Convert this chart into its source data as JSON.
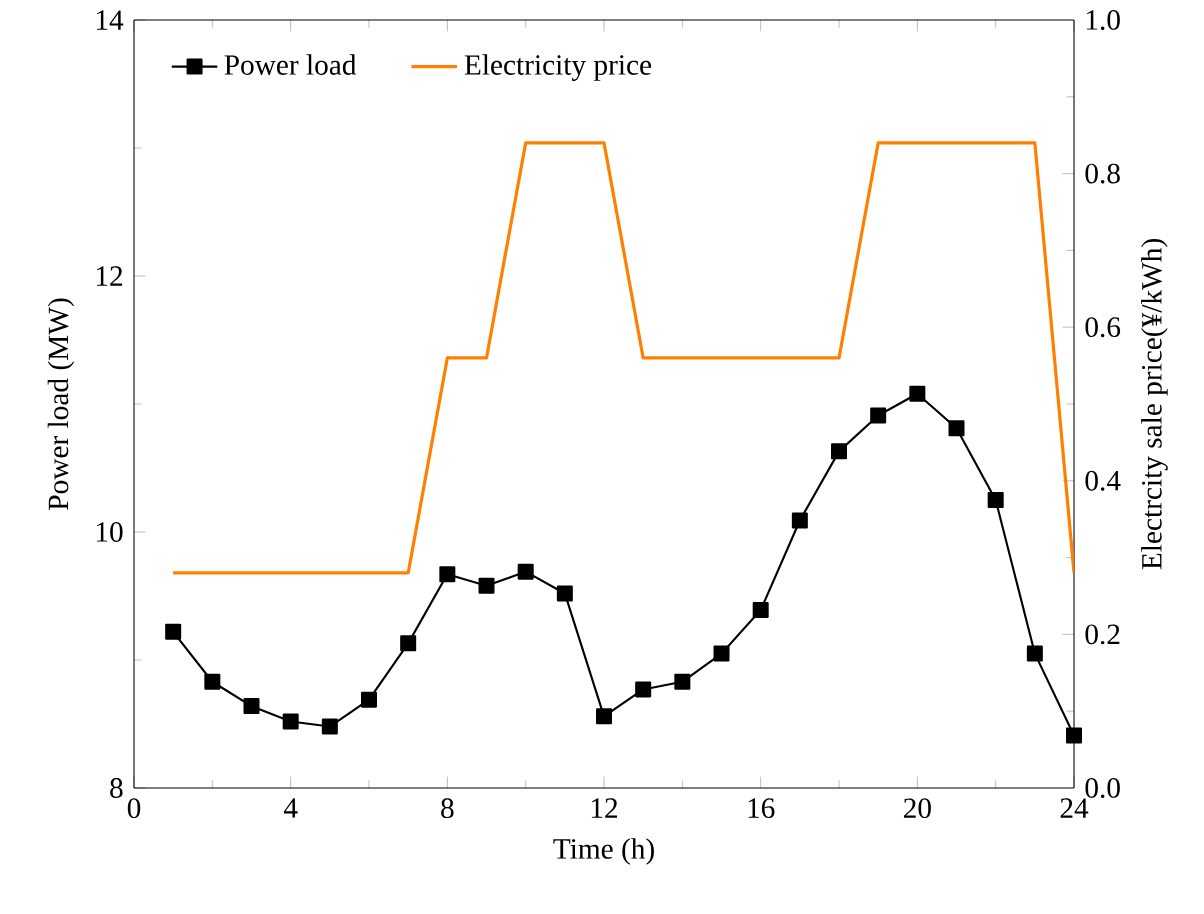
{
  "chart_data": {
    "type": "line",
    "xlabel": "Time (h)",
    "ylabel": "Power load (MW)",
    "y2label": "Electrcity sale price(¥/kWh)",
    "x": [
      1,
      2,
      3,
      4,
      5,
      6,
      7,
      8,
      9,
      10,
      11,
      12,
      13,
      14,
      15,
      16,
      17,
      18,
      19,
      20,
      21,
      22,
      23,
      24
    ],
    "xlim": [
      0,
      24
    ],
    "xticks": [
      0,
      4,
      8,
      12,
      16,
      20,
      24
    ],
    "ylim": [
      8,
      14
    ],
    "yticks": [
      8,
      10,
      12,
      14
    ],
    "y2lim": [
      0,
      1
    ],
    "y2ticks": [
      {
        "value": 0,
        "label": "0.0"
      },
      {
        "value": 0.2,
        "label": "0.2"
      },
      {
        "value": 0.4,
        "label": "0.4"
      },
      {
        "value": 0.6,
        "label": "0.6"
      },
      {
        "value": 0.8,
        "label": "0.8"
      },
      {
        "value": 1,
        "label": "1.0"
      }
    ],
    "legend": "top left",
    "grid": false,
    "series": [
      {
        "name": "Power load",
        "color": "#000000",
        "marker": "square",
        "values": [
          9.22,
          8.83,
          8.64,
          8.52,
          8.48,
          8.69,
          9.13,
          9.67,
          9.58,
          9.69,
          9.52,
          8.56,
          8.77,
          8.83,
          9.05,
          9.39,
          10.09,
          10.63,
          10.91,
          11.08,
          10.81,
          10.25,
          9.05,
          8.41
        ]
      },
      {
        "name": "Electricity price",
        "color": "#ff8000",
        "marker": "none",
        "axis": "y2",
        "values": [
          0.28,
          0.28,
          0.28,
          0.28,
          0.28,
          0.28,
          0.28,
          0.56,
          0.56,
          0.84,
          0.84,
          0.84,
          0.56,
          0.56,
          0.56,
          0.56,
          0.56,
          0.56,
          0.84,
          0.84,
          0.84,
          0.84,
          0.84,
          0.28
        ]
      }
    ]
  }
}
